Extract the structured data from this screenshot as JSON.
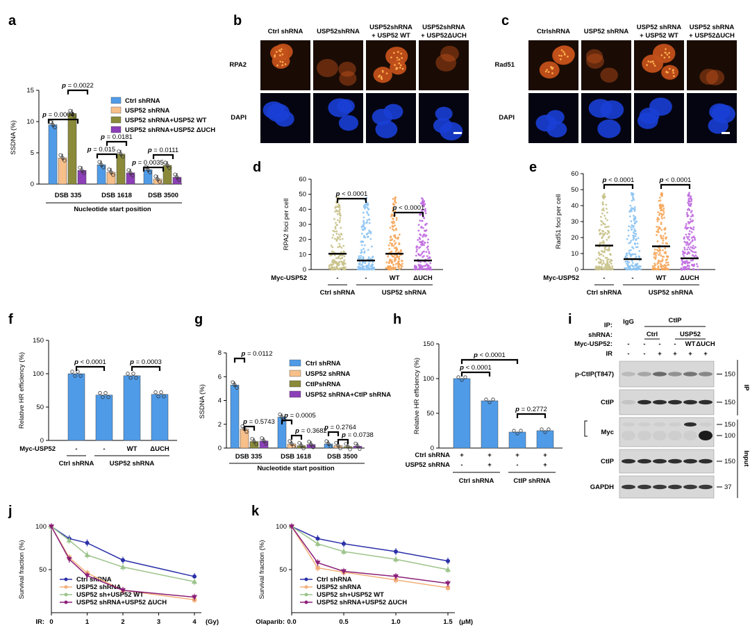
{
  "panel_labels": [
    "a",
    "b",
    "c",
    "d",
    "e",
    "f",
    "g",
    "h",
    "i",
    "j",
    "k"
  ],
  "colors": {
    "blue": "#4f9be8",
    "orange": "#f7bf8a",
    "olive": "#8a8a3a",
    "purple": "#8c3fb8",
    "lightblue": "#8cc3f2",
    "tan": "#c9c28a",
    "lightorange": "#f6a65a",
    "violet": "#c06de0",
    "navy": "#2a2fa8",
    "lightorange_line": "#f2b07a",
    "green_line": "#9bc38a",
    "magenta_line": "#8a1f78"
  },
  "panel_a": {
    "chart_data": {
      "type": "bar",
      "ylabel": "SSDNA (%)",
      "xlabel": "Nucleotide start position",
      "ylim": [
        0,
        15
      ],
      "yticks": [
        "0",
        "5",
        "10",
        "15"
      ],
      "categories": [
        "DSB 335",
        "DSB 1618",
        "DSB 3500"
      ],
      "series": [
        {
          "name": "Ctrl shRNA",
          "values": [
            9.5,
            3.1,
            2.3
          ]
        },
        {
          "name": "USP52 shRNA",
          "values": [
            4.2,
            1.9,
            0.8
          ]
        },
        {
          "name": "USP52 shRNA+USP52 WT",
          "values": [
            11.3,
            4.8,
            3.0
          ]
        },
        {
          "name": "USP52 shRNA+USP52 ΔUCH",
          "values": [
            2.2,
            1.8,
            1.1
          ]
        }
      ],
      "pvalues": [
        "p = 0.0004",
        "p = 0.0022",
        "p = 0.015",
        "p = 0.0181",
        "p = 0.0035",
        "p = 0.0111"
      ],
      "legend_placement": "top-right"
    }
  },
  "panel_b": {
    "columns": [
      "Ctrl shRNA",
      "USP52shRNA",
      "USP52shRNA\n+ USP52 WT",
      "USP52shRNA\n+ USP52ΔUCH"
    ],
    "rows": [
      "RPA2",
      "DAPI"
    ]
  },
  "panel_d": {
    "columns": [
      "CtrlshRNA",
      "USP52 shRNA",
      "USP52 shRNA\n+ USP52 WT",
      "USP52 shRNA\n+ USP52ΔUCH"
    ],
    "rows": [
      "Rad51",
      "DAPI"
    ]
  },
  "panel_c": {
    "chart_data": {
      "type": "scatter",
      "ylabel": "RPA2 foci per cell",
      "ylim": [
        0,
        60
      ],
      "yticks": [
        "0",
        "10",
        "20",
        "30",
        "40",
        "50",
        "60"
      ],
      "categories": [
        "-",
        "-",
        "WT",
        "ΔUCH"
      ],
      "row_label": "Myc-USP52",
      "group_labels": [
        "Ctrl shRNA",
        "USP52 shRNA"
      ],
      "means": [
        10.5,
        6,
        10.5,
        6
      ],
      "pvalues": [
        "p < 0.0001",
        "p < 0.0001"
      ]
    }
  },
  "panel_e": {
    "chart_data": {
      "type": "scatter",
      "ylabel": "Rad51 foci per cell",
      "ylim": [
        0,
        60
      ],
      "yticks": [
        "0",
        "10",
        "20",
        "30",
        "40",
        "50",
        "60"
      ],
      "categories": [
        "-",
        "-",
        "WT",
        "ΔUCH"
      ],
      "row_label": "Myc-USP52",
      "group_labels": [
        "Ctrl shRNA",
        "USP52 shRNA"
      ],
      "means": [
        15,
        6.5,
        14.5,
        7
      ],
      "pvalues": [
        "p < 0.0001",
        "p < 0.0001"
      ]
    }
  },
  "panel_f": {
    "chart_data": {
      "type": "bar",
      "ylabel": "Relative HR efficiency (%)",
      "ylim": [
        0,
        150
      ],
      "yticks": [
        "0",
        "50",
        "100",
        "150"
      ],
      "categories": [
        "-",
        "-",
        "WT",
        "ΔUCH"
      ],
      "values": [
        100,
        68,
        97,
        69
      ],
      "row_label": "Myc-USP52",
      "group_labels": [
        "Ctrl shRNA",
        "USP52 shRNA"
      ],
      "pvalues": [
        "p < 0.0001",
        "p = 0.0003"
      ]
    }
  },
  "panel_g": {
    "chart_data": {
      "type": "bar",
      "ylabel": "SSDNA (%)",
      "xlabel": "Nucleotide start position",
      "ylim": [
        0,
        8
      ],
      "yticks": [
        "0",
        "2",
        "4",
        "6",
        "8"
      ],
      "categories": [
        "DSB 335",
        "DSB 1618",
        "DSB 3500"
      ],
      "series": [
        {
          "name": "Ctrl shRNA",
          "values": [
            5.3,
            2.6,
            0.35
          ]
        },
        {
          "name": "USP52 shRNA",
          "values": [
            1.6,
            0.35,
            0.2
          ]
        },
        {
          "name": "CtIPshRNA",
          "values": [
            0.55,
            0.2,
            0.12
          ]
        },
        {
          "name": "USP52 shRNA+CtIP shRNA",
          "values": [
            0.6,
            0.3,
            0.15
          ]
        }
      ],
      "pvalues": [
        "p = 0.0112",
        "p = 0.5743",
        "p = 0.0005",
        "p = 0.3682",
        "p = 0.2764",
        "p = 0.0738"
      ]
    }
  },
  "panel_h": {
    "chart_data": {
      "type": "bar",
      "ylabel": "Relative HR efficiency (%)",
      "ylim": [
        0,
        150
      ],
      "yticks": [
        "0",
        "50",
        "100",
        "150"
      ],
      "values": [
        100,
        68,
        23,
        25
      ],
      "row1_label": "Ctrl shRNA",
      "row1": [
        "+",
        "+",
        "+",
        "+"
      ],
      "row2_label": "USP52 shRNA",
      "row2": [
        "-",
        "+",
        "-",
        "+"
      ],
      "group_labels": [
        "Ctrl shRNA",
        "CtIP shRNA"
      ],
      "pvalues": [
        "p < 0.0001",
        "p < 0.0001",
        "p = 0.2772"
      ]
    }
  },
  "panel_i": {
    "header_rows": {
      "ip_label": "IP:",
      "ip_values": [
        "IgG",
        "CtIP"
      ],
      "shrna_label": "shRNA:",
      "shrna_values": [
        "Ctrl",
        "USP52"
      ],
      "myc_label": "Myc-USP52:",
      "myc_values": [
        "-",
        "-",
        "-",
        "-",
        "WT",
        "ΔUCH"
      ],
      "ir_label": "IR",
      "ir_values": [
        "-",
        "-",
        "+",
        "+",
        "+",
        "+"
      ]
    },
    "blots": [
      {
        "label": "p-CtIP(T847)",
        "mw": [
          "150"
        ]
      },
      {
        "label": "CtIP",
        "mw": [
          "150"
        ]
      },
      {
        "label": "Myc",
        "mw": [
          "150",
          "100"
        ]
      },
      {
        "label": "CtIP",
        "mw": [
          "150"
        ]
      },
      {
        "label": "GAPDH",
        "mw": [
          "37"
        ]
      }
    ],
    "side_labels": [
      "IP",
      "Input"
    ]
  },
  "panel_j": {
    "chart_data": {
      "type": "line",
      "ylabel": "Survival fraction (%)",
      "x_prefix": "IR:",
      "x_unit": "(Gy)",
      "x": [
        0,
        0.5,
        1,
        2,
        4
      ],
      "xlim": [
        0,
        4
      ],
      "xticks": [
        "0",
        "1",
        "2",
        "3",
        "4"
      ],
      "ylim": [
        0,
        100
      ],
      "yticks": [
        "50",
        "100"
      ],
      "series": [
        {
          "name": "Ctrl shRNA",
          "values": [
            100,
            86,
            81,
            61,
            42
          ]
        },
        {
          "name": "USP52 shRNA",
          "values": [
            100,
            64,
            46,
            26,
            15
          ]
        },
        {
          "name": "USP52 sh+USP52 WT",
          "values": [
            100,
            84,
            67,
            53,
            36
          ]
        },
        {
          "name": "USP52 shRNA+USP52 ΔUCH",
          "values": [
            100,
            62,
            43,
            26,
            18
          ]
        }
      ],
      "legend_placement": "bottom-left"
    }
  },
  "panel_k": {
    "chart_data": {
      "type": "line",
      "ylabel": "Survival fraction (%)",
      "x_prefix": "Olaparib:",
      "x_unit": "(μM)",
      "x": [
        0,
        0.25,
        0.5,
        1.0,
        1.5
      ],
      "xlim": [
        0,
        1.5
      ],
      "xticks": [
        "0.0",
        "0.5",
        "1.0",
        "1.5"
      ],
      "ylim": [
        0,
        100
      ],
      "yticks": [
        "50",
        "100"
      ],
      "series": [
        {
          "name": "Ctrl shRNA",
          "values": [
            100,
            86,
            80,
            71,
            60
          ]
        },
        {
          "name": "USP52 shRNA",
          "values": [
            100,
            52,
            47,
            38,
            29
          ]
        },
        {
          "name": "USP52 sh+USP52 WT",
          "values": [
            100,
            80,
            71,
            62,
            50
          ]
        },
        {
          "name": "USP52 shRNA+USP52 ΔUCH",
          "values": [
            100,
            58,
            48,
            42,
            34
          ]
        }
      ],
      "legend_placement": "bottom-left"
    }
  }
}
